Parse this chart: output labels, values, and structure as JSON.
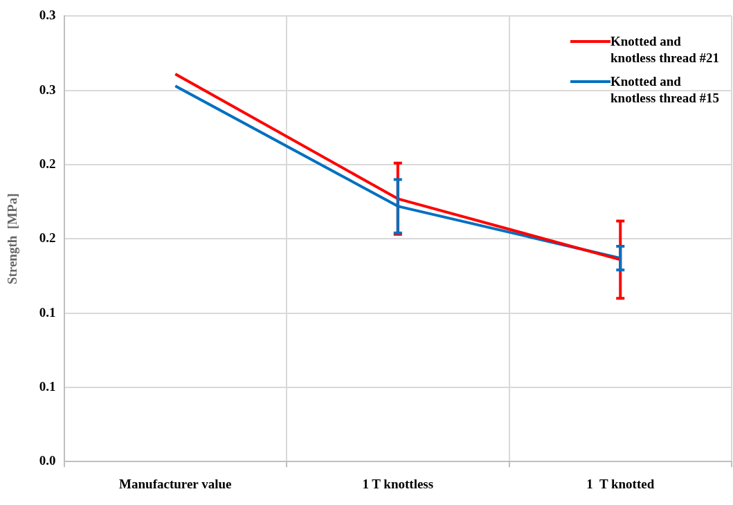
{
  "chart_data": {
    "type": "line",
    "ylabel": "Strength  [MPa]",
    "categories": [
      "Manufacturer value",
      "1 T knottless",
      "1  T knotted"
    ],
    "series": [
      {
        "name": "Knotted and knotless thread #21",
        "color": "#ff0000",
        "values": [
          0.261,
          0.177,
          0.136
        ],
        "errors": [
          null,
          0.024,
          0.026
        ]
      },
      {
        "name": "Knotted and knotless thread #15",
        "color": "#0070c0",
        "values": [
          0.253,
          0.172,
          0.137
        ],
        "errors": [
          null,
          0.018,
          0.008
        ]
      }
    ],
    "ylim": [
      0,
      0.3
    ],
    "yticks": [
      {
        "value": 0,
        "label": "0.0"
      },
      {
        "value": 0.05,
        "label": "0.1"
      },
      {
        "value": 0.1,
        "label": "0.1"
      },
      {
        "value": 0.15,
        "label": "0.2"
      },
      {
        "value": 0.2,
        "label": "0.2"
      },
      {
        "value": 0.25,
        "label": "0.3"
      },
      {
        "value": 0.3,
        "label": "0.3"
      }
    ],
    "grid": true,
    "legend": "top right",
    "marker": "none",
    "line_style": "solid"
  }
}
